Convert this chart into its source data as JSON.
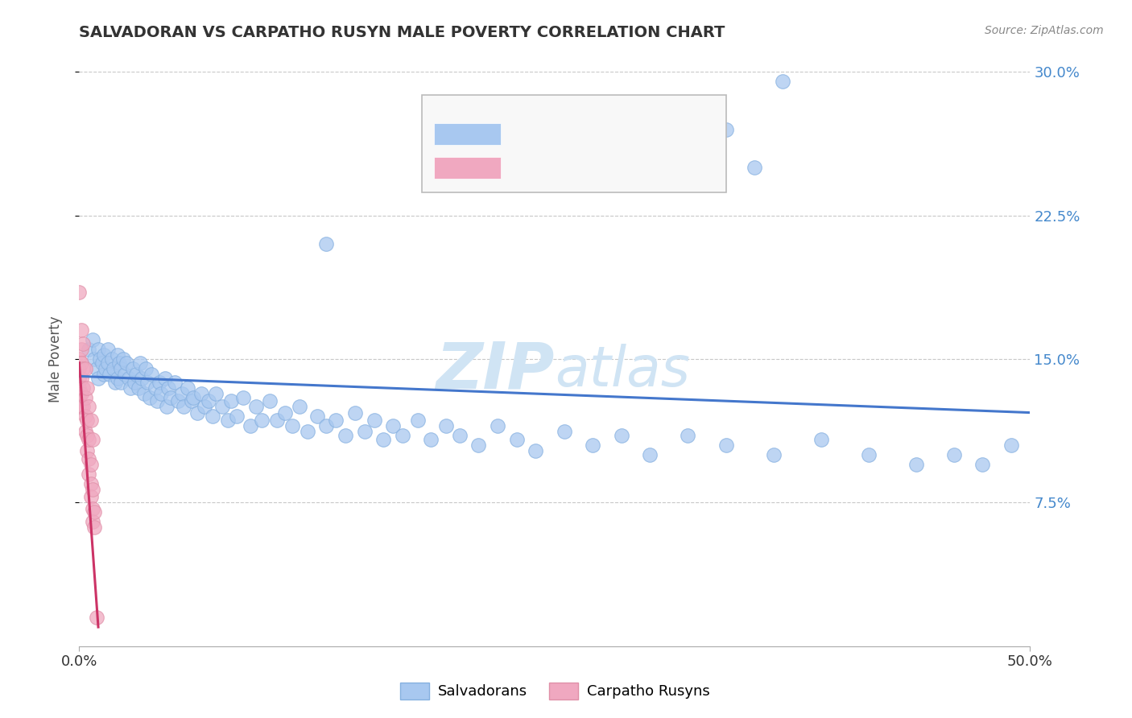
{
  "title": "SALVADORAN VS CARPATHO RUSYN MALE POVERTY CORRELATION CHART",
  "source_text": "Source: ZipAtlas.com",
  "ylabel": "Male Poverty",
  "xlim": [
    0.0,
    0.5
  ],
  "ylim": [
    0.0,
    0.3
  ],
  "ytick_labels": [
    "7.5%",
    "15.0%",
    "22.5%",
    "30.0%"
  ],
  "ytick_values": [
    0.075,
    0.15,
    0.225,
    0.3
  ],
  "background_color": "#ffffff",
  "grid_color": "#c8c8c8",
  "salvadoran_color": "#a8c8f0",
  "salvadoran_edge_color": "#85b0e0",
  "carpatho_color": "#f0a8c0",
  "carpatho_edge_color": "#e090a8",
  "trend_salvadoran_color": "#4477cc",
  "trend_carpatho_color": "#cc3366",
  "watermark_color": "#d0e4f4",
  "salvadoran_label": "Salvadorans",
  "carpatho_label": "Carpatho Rusyns",
  "salvadoran_x": [
    0.005,
    0.007,
    0.008,
    0.009,
    0.01,
    0.01,
    0.011,
    0.012,
    0.013,
    0.013,
    0.014,
    0.015,
    0.015,
    0.016,
    0.017,
    0.018,
    0.019,
    0.02,
    0.02,
    0.021,
    0.022,
    0.022,
    0.023,
    0.024,
    0.025,
    0.026,
    0.027,
    0.028,
    0.029,
    0.03,
    0.031,
    0.032,
    0.033,
    0.034,
    0.035,
    0.036,
    0.037,
    0.038,
    0.04,
    0.041,
    0.042,
    0.043,
    0.045,
    0.046,
    0.047,
    0.048,
    0.05,
    0.052,
    0.054,
    0.055,
    0.057,
    0.059,
    0.06,
    0.062,
    0.064,
    0.066,
    0.068,
    0.07,
    0.072,
    0.075,
    0.078,
    0.08,
    0.083,
    0.086,
    0.09,
    0.093,
    0.096,
    0.1,
    0.104,
    0.108,
    0.112,
    0.116,
    0.12,
    0.125,
    0.13,
    0.135,
    0.14,
    0.145,
    0.15,
    0.155,
    0.16,
    0.165,
    0.17,
    0.178,
    0.185,
    0.193,
    0.2,
    0.21,
    0.22,
    0.23,
    0.24,
    0.255,
    0.27,
    0.285,
    0.3,
    0.32,
    0.34,
    0.365,
    0.39,
    0.415,
    0.44,
    0.46,
    0.475,
    0.49,
    0.34,
    0.355,
    0.37,
    0.13
  ],
  "salvadoran_y": [
    0.155,
    0.16,
    0.15,
    0.145,
    0.14,
    0.155,
    0.15,
    0.148,
    0.142,
    0.152,
    0.145,
    0.155,
    0.148,
    0.142,
    0.15,
    0.145,
    0.138,
    0.152,
    0.14,
    0.148,
    0.145,
    0.138,
    0.15,
    0.142,
    0.148,
    0.14,
    0.135,
    0.145,
    0.138,
    0.142,
    0.135,
    0.148,
    0.14,
    0.132,
    0.145,
    0.138,
    0.13,
    0.142,
    0.135,
    0.128,
    0.138,
    0.132,
    0.14,
    0.125,
    0.135,
    0.13,
    0.138,
    0.128,
    0.132,
    0.125,
    0.135,
    0.128,
    0.13,
    0.122,
    0.132,
    0.125,
    0.128,
    0.12,
    0.132,
    0.125,
    0.118,
    0.128,
    0.12,
    0.13,
    0.115,
    0.125,
    0.118,
    0.128,
    0.118,
    0.122,
    0.115,
    0.125,
    0.112,
    0.12,
    0.115,
    0.118,
    0.11,
    0.122,
    0.112,
    0.118,
    0.108,
    0.115,
    0.11,
    0.118,
    0.108,
    0.115,
    0.11,
    0.105,
    0.115,
    0.108,
    0.102,
    0.112,
    0.105,
    0.11,
    0.1,
    0.11,
    0.105,
    0.1,
    0.108,
    0.1,
    0.095,
    0.1,
    0.095,
    0.105,
    0.27,
    0.25,
    0.295,
    0.21
  ],
  "carpatho_x": [
    0.0,
    0.0,
    0.0,
    0.0,
    0.0,
    0.0,
    0.0,
    0.001,
    0.001,
    0.001,
    0.001,
    0.001,
    0.001,
    0.002,
    0.002,
    0.002,
    0.002,
    0.003,
    0.003,
    0.003,
    0.003,
    0.004,
    0.004,
    0.004,
    0.004,
    0.005,
    0.005,
    0.005,
    0.005,
    0.006,
    0.006,
    0.006,
    0.006,
    0.007,
    0.007,
    0.007,
    0.007,
    0.008,
    0.008,
    0.009
  ],
  "carpatho_y": [
    0.15,
    0.145,
    0.14,
    0.135,
    0.13,
    0.125,
    0.185,
    0.155,
    0.148,
    0.14,
    0.132,
    0.125,
    0.165,
    0.145,
    0.135,
    0.125,
    0.158,
    0.13,
    0.12,
    0.112,
    0.145,
    0.118,
    0.11,
    0.102,
    0.135,
    0.108,
    0.098,
    0.09,
    0.125,
    0.095,
    0.085,
    0.078,
    0.118,
    0.082,
    0.072,
    0.065,
    0.108,
    0.07,
    0.062,
    0.015
  ],
  "trend_salv_x0": 0.0,
  "trend_salv_y0": 0.141,
  "trend_salv_x1": 0.5,
  "trend_salv_y1": 0.122,
  "trend_carp_x0": 0.0,
  "trend_carp_y0": 0.148,
  "trend_carp_x1": 0.01,
  "trend_carp_y1": 0.01
}
